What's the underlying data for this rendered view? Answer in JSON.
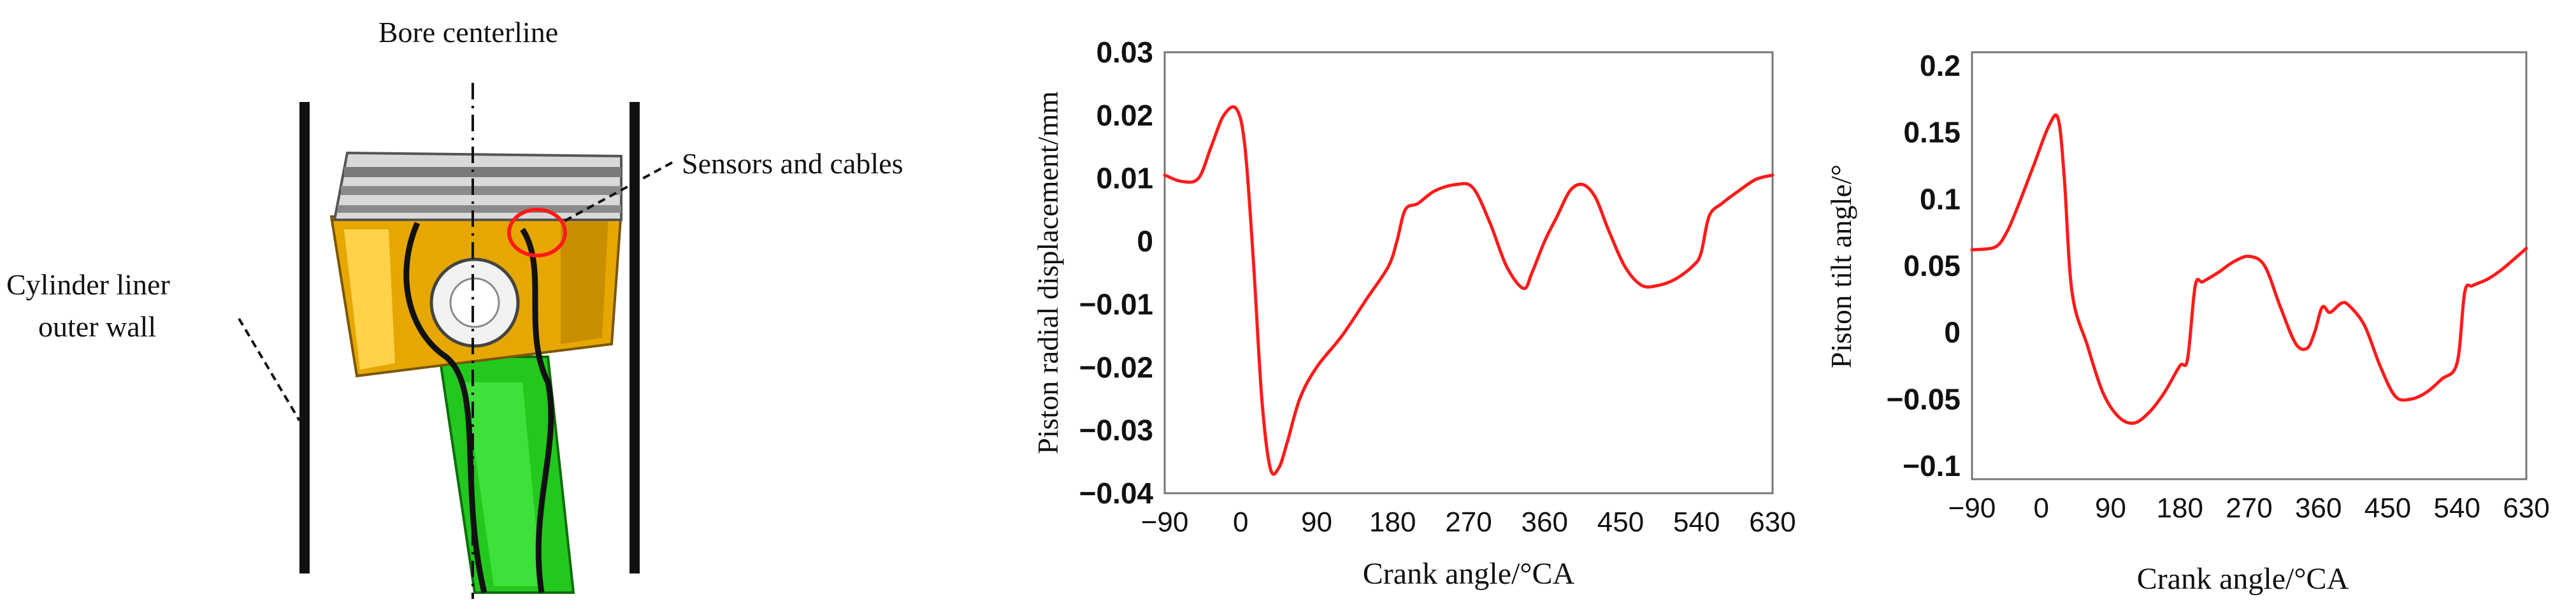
{
  "diagram": {
    "bore_label": "Bore centerline",
    "sensors_label": "Sensors and cables",
    "liner_label_line1": "Cylinder liner",
    "liner_label_line2": "outer wall"
  },
  "chart_data": [
    {
      "type": "line",
      "xlabel": "Crank angle/°CA",
      "ylabel": "Piston radial displacement/mm",
      "xlim": [
        -90,
        630
      ],
      "ylim": [
        -0.04,
        0.03
      ],
      "xticks": [
        "−90",
        "0",
        "90",
        "180",
        "270",
        "360",
        "450",
        "540",
        "630"
      ],
      "yticks": [
        "0.03",
        "0.02",
        "0.01",
        "0",
        "−0.01",
        "−0.02",
        "−0.03",
        "−0.04"
      ],
      "color": "#ff1a1a",
      "grid": false,
      "x": [
        -90,
        -70,
        -50,
        -35,
        -20,
        -5,
        5,
        15,
        25,
        35,
        45,
        55,
        70,
        90,
        120,
        150,
        175,
        185,
        195,
        210,
        230,
        255,
        275,
        295,
        315,
        335,
        345,
        360,
        375,
        390,
        405,
        420,
        435,
        455,
        475,
        495,
        515,
        535,
        545,
        555,
        570,
        590,
        610,
        630
      ],
      "y": [
        0.0105,
        0.0095,
        0.01,
        0.015,
        0.02,
        0.021,
        0.015,
        -0.003,
        -0.025,
        -0.036,
        -0.036,
        -0.032,
        -0.025,
        -0.02,
        -0.015,
        -0.009,
        -0.004,
        0.0,
        0.005,
        0.006,
        0.008,
        0.009,
        0.0085,
        0.003,
        -0.004,
        -0.0075,
        -0.005,
        0.0,
        0.004,
        0.008,
        0.009,
        0.007,
        0.002,
        -0.004,
        -0.007,
        -0.007,
        -0.006,
        -0.004,
        -0.002,
        0.004,
        0.006,
        0.008,
        0.0098,
        0.0105
      ]
    },
    {
      "type": "line",
      "xlabel": "Crank angle/°CA",
      "ylabel": "Piston tilt angle/°",
      "xlim": [
        -90,
        630
      ],
      "ylim": [
        -0.11,
        0.21
      ],
      "xticks": [
        "−90",
        "0",
        "90",
        "180",
        "270",
        "360",
        "450",
        "540",
        "630"
      ],
      "yticks": [
        "0.2",
        "0.15",
        "0.1",
        "0.05",
        "0",
        "−0.05",
        "−0.1"
      ],
      "color": "#ff1a1a",
      "grid": false,
      "x": [
        -90,
        -60,
        -45,
        -30,
        -10,
        10,
        22,
        30,
        40,
        60,
        80,
        100,
        120,
        140,
        160,
        180,
        190,
        200,
        210,
        230,
        250,
        270,
        290,
        310,
        330,
        345,
        355,
        365,
        375,
        390,
        400,
        420,
        440,
        460,
        480,
        500,
        520,
        540,
        550,
        560,
        580,
        600,
        630
      ],
      "y": [
        0.062,
        0.064,
        0.075,
        0.095,
        0.125,
        0.155,
        0.16,
        0.115,
        0.03,
        -0.01,
        -0.045,
        -0.063,
        -0.068,
        -0.06,
        -0.045,
        -0.025,
        -0.02,
        0.035,
        0.038,
        0.045,
        0.053,
        0.057,
        0.05,
        0.02,
        -0.008,
        -0.012,
        0.0,
        0.019,
        0.015,
        0.022,
        0.02,
        0.005,
        -0.025,
        -0.048,
        -0.05,
        -0.045,
        -0.035,
        -0.023,
        0.03,
        0.035,
        0.04,
        0.048,
        0.063
      ]
    }
  ]
}
